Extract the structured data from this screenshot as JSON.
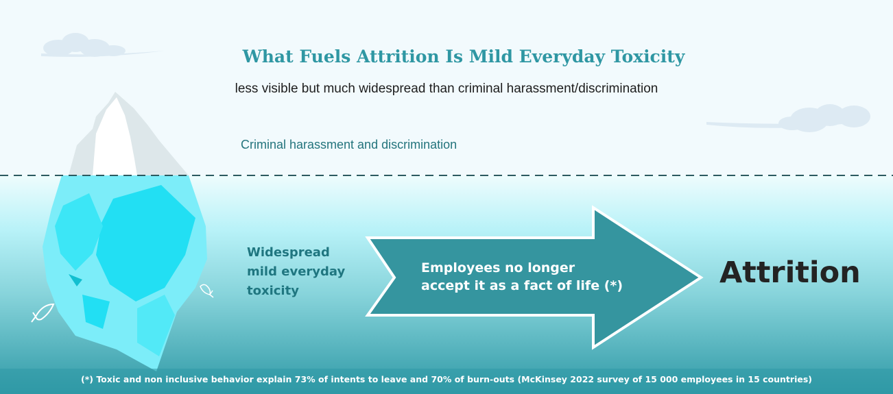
{
  "title": "What Fuels Attrition Is Mild Everyday Toxicity",
  "subtitle": "less visible but much widespread than criminal harassment/discrimination",
  "iceberg": {
    "above_water_label": "Criminal harassment and discrimination",
    "below_water_label_lines": [
      "Widespread",
      "mild everyday",
      "toxicity"
    ]
  },
  "arrow": {
    "text_lines": [
      "Employees no longer",
      "accept it as a fact of life (*)"
    ]
  },
  "outcome": "Attrition",
  "footnote": "(*) Toxic and non inclusive behavior explain 73% of intents to leave and 70% of burn-outs (McKinsey 2022 survey of 15 000 employees in 15 countries)",
  "colors": {
    "sky": "#f2fafd",
    "water_top": "#dafafd",
    "water_bottom": "#2f99a6",
    "title": "#2f97a3",
    "arrow_fill": "#35959f",
    "waterline": "#2b5a60",
    "ice_light": "#7cedf9",
    "ice_dark": "#20dff3"
  }
}
